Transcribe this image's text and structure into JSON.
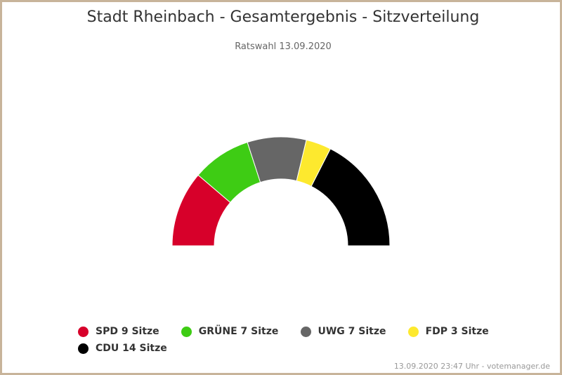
{
  "chart_data": {
    "type": "parliament-semicircle",
    "title": "Stadt Rheinbach - Gesamtergebnis - Sitzverteilung",
    "subtitle": "Ratswahl 13.09.2020",
    "series": [
      {
        "name": "SPD",
        "seats": 9,
        "color": "#d7002a",
        "legend_label": "SPD 9 Sitze"
      },
      {
        "name": "GRÜNE",
        "seats": 7,
        "color": "#3ecc14",
        "legend_label": "GRÜNE 7 Sitze"
      },
      {
        "name": "UWG",
        "seats": 7,
        "color": "#666666",
        "legend_label": "UWG 7 Sitze"
      },
      {
        "name": "FDP",
        "seats": 3,
        "color": "#fde92e",
        "legend_label": "FDP 3 Sitze"
      },
      {
        "name": "CDU",
        "seats": 14,
        "color": "#000000",
        "legend_label": "CDU 14 Sitze"
      }
    ],
    "legend_position": "bottom"
  },
  "credits": "13.09.2020 23:47 Uhr - votemanager.de"
}
